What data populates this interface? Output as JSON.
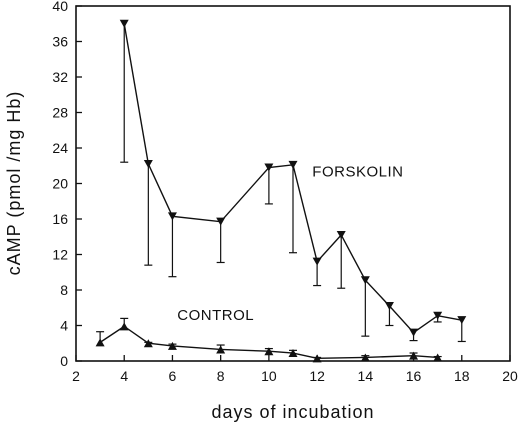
{
  "chart_data": {
    "type": "line",
    "xlabel": "days of incubation",
    "ylabel": "cAMP (pmol /mg Hb)",
    "xlim": [
      2,
      20
    ],
    "ylim": [
      0,
      40
    ],
    "xticks": [
      2,
      4,
      6,
      8,
      10,
      12,
      14,
      16,
      18,
      20
    ],
    "yticks": [
      0,
      4,
      8,
      12,
      16,
      20,
      24,
      28,
      32,
      36,
      40
    ],
    "grid": false,
    "legend": "none",
    "series": [
      {
        "name": "FORSKOLIN",
        "marker": "triangle-down",
        "error_direction": "down",
        "x": [
          4,
          5,
          6,
          8,
          10,
          11,
          12,
          13,
          14,
          15,
          16,
          17,
          18
        ],
        "y": [
          38.0,
          22.2,
          16.3,
          15.7,
          21.8,
          22.1,
          11.2,
          14.2,
          9.1,
          6.2,
          3.2,
          5.1,
          4.6
        ],
        "error": [
          15.6,
          11.4,
          6.8,
          4.6,
          4.1,
          9.9,
          2.7,
          6.0,
          6.3,
          2.2,
          0.9,
          0.7,
          2.4
        ]
      },
      {
        "name": "CONTROL",
        "marker": "triangle-up",
        "error_direction": "up",
        "x": [
          3,
          4,
          5,
          6,
          8,
          10,
          11,
          12,
          14,
          16,
          17
        ],
        "y": [
          2.1,
          3.9,
          2.0,
          1.7,
          1.3,
          1.1,
          0.9,
          0.3,
          0.4,
          0.6,
          0.4
        ],
        "error": [
          1.2,
          0.9,
          0.1,
          0.2,
          0.5,
          0.3,
          0.3,
          0.1,
          0.2,
          0.3,
          0.1
        ]
      }
    ],
    "annotations": [
      {
        "text": "FORSKOLIN",
        "x": 11.8,
        "y": 20.8
      },
      {
        "text": "CONTROL",
        "x": 6.2,
        "y": 4.6
      }
    ]
  }
}
